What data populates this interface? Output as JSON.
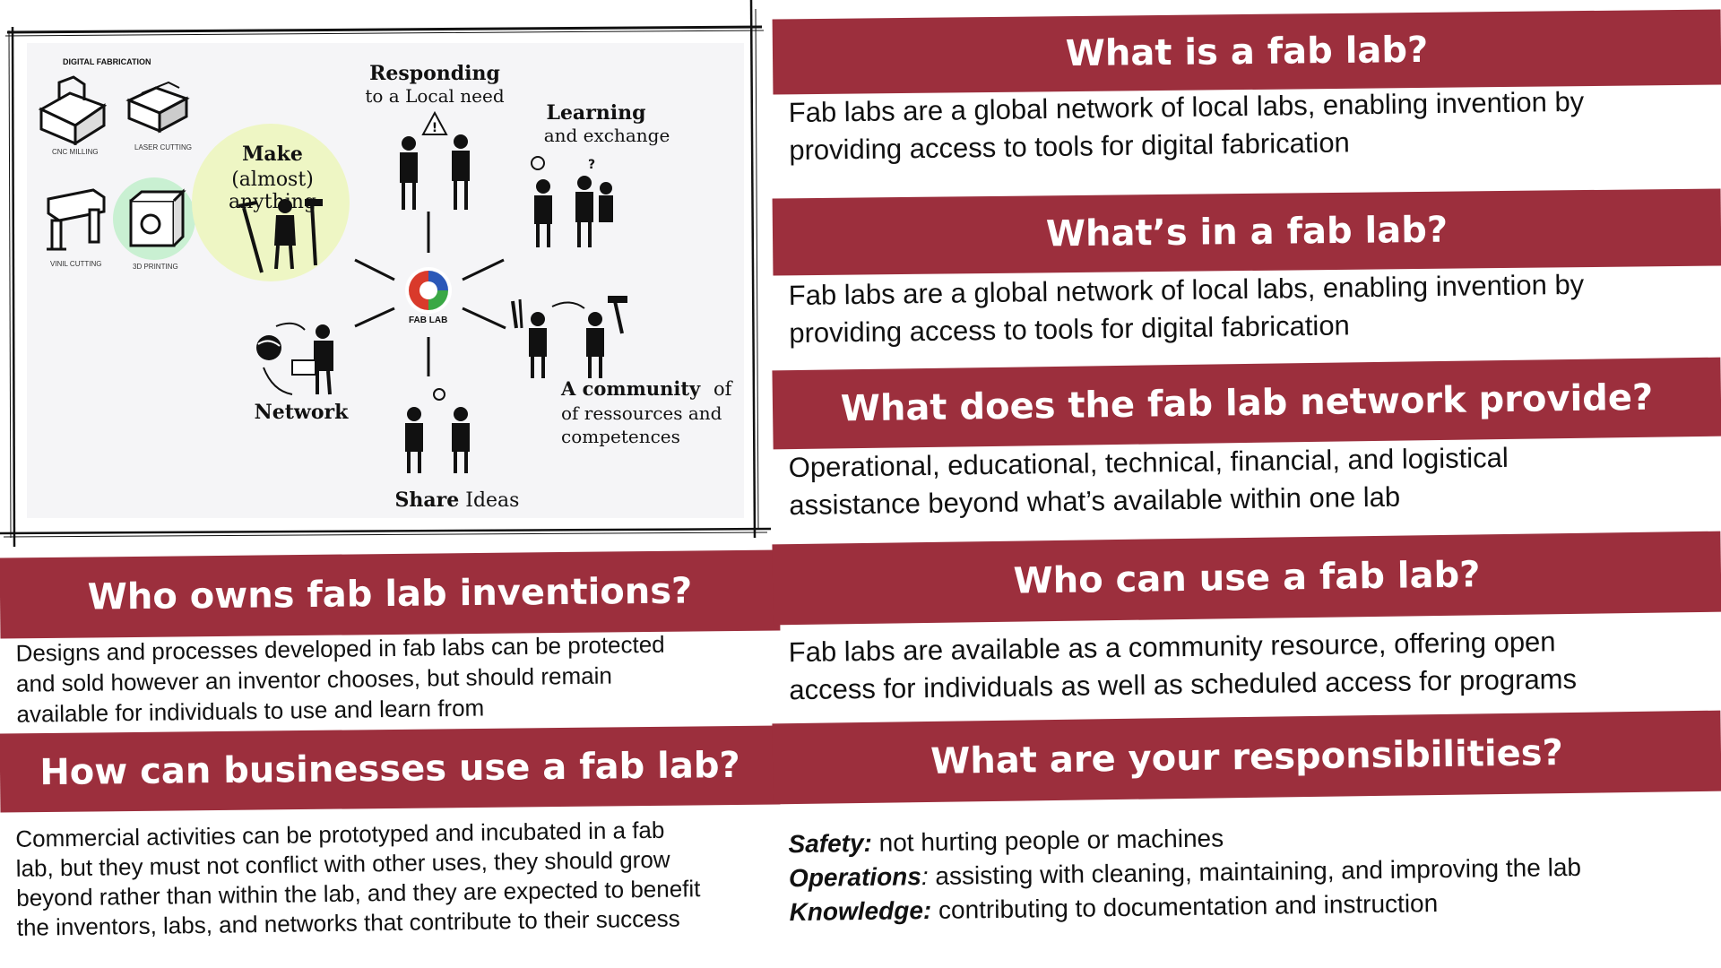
{
  "diagram": {
    "digital_fabrication_title": "DIGITAL FABRICATION",
    "machines": {
      "cnc": "CNC MILLING",
      "laser": "LASER CUTTING",
      "vinyl": "VINIL CUTTING",
      "printing": "3D PRINTING"
    },
    "make_title": "Make",
    "make_sub": "(almost) anything",
    "responding_title": "Responding",
    "responding_sub": "to a Local need",
    "learning_title": "Learning",
    "learning_sub": "and exchange",
    "center_logo_label": "FAB LAB",
    "network_label": "Network",
    "community_title": "A community",
    "community_of": "of",
    "community_line2": "of ressources and",
    "community_line3": "competences",
    "share_bold": "Share",
    "share_rest": " Ideas",
    "warning_glyph": "!",
    "question_glyph": "?"
  },
  "sections": {
    "what_is": {
      "title": "What is a fab lab?",
      "line1": "Fab labs are a global network of local labs, enabling invention by",
      "line2": "providing access to tools for digital fabrication"
    },
    "whats_in": {
      "title": "What’s in a fab lab?",
      "line1": "Fab labs are a global network of local labs, enabling invention by",
      "line2": "providing access to tools for digital fabrication"
    },
    "network_provide": {
      "title": "What does the fab lab network provide?",
      "line1": "Operational, educational, technical, financial, and logistical",
      "line2": "assistance beyond what’s available within one lab"
    },
    "who_owns": {
      "title": "Who owns fab lab inventions?",
      "line1": "Designs and processes developed in fab labs can be protected",
      "line2": "and sold however an inventor chooses, but should remain",
      "line3": "available for individuals to use and learn from"
    },
    "who_can_use": {
      "title": "Who can use a fab lab?",
      "line1": "Fab labs are available as a community resource, offering open",
      "line2": "access for individuals as well as scheduled access for programs"
    },
    "businesses": {
      "title": "How can businesses use a fab lab?",
      "line1": "Commercial activities can be prototyped and incubated in a fab",
      "line2": "lab, but they must not conflict with other uses, they should grow",
      "line3": "beyond rather than within the lab, and they are expected to benefit",
      "line4": "the inventors, labs, and networks that contribute to their success"
    },
    "responsibilities": {
      "title": "What are your responsibilities?",
      "items": [
        {
          "term": "Safety:",
          "text": " not hurting people or machines"
        },
        {
          "term": "Operations",
          "colon": ":",
          "text": " assisting with cleaning, maintaining, and improving the lab"
        },
        {
          "term": "Knowledge:",
          "text": " contributing to documentation and instruction"
        }
      ]
    }
  },
  "colors": {
    "banner": "#9c2f3d",
    "make_highlight": "#eef6c4",
    "printer_highlight": "#c9f0d2",
    "logo_red": "#d93a2b",
    "logo_green": "#3aa845",
    "logo_blue": "#2b58b8"
  }
}
